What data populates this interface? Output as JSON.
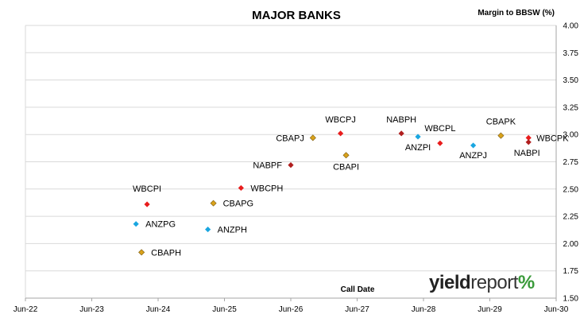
{
  "chart_data": {
    "type": "scatter",
    "title": "MAJOR BANKS",
    "xlabel": "Call Date",
    "ylabel": "Margin to BBSW (%)",
    "x_ticks": [
      "Jun-22",
      "Jun-23",
      "Jun-24",
      "Jun-25",
      "Jun-26",
      "Jun-27",
      "Jun-28",
      "Jun-29",
      "Jun-30"
    ],
    "y_ticks": [
      "1.50",
      "1.75",
      "2.00",
      "2.25",
      "2.50",
      "2.75",
      "3.00",
      "3.25",
      "3.50",
      "3.75",
      "4.00"
    ],
    "xlim": [
      "2022-06",
      "2030-06"
    ],
    "ylim": [
      1.5,
      4.0
    ],
    "grid": "horizontal",
    "colors": {
      "WBC": "#e81c1c",
      "CBA": "#d9a21b",
      "ANZ": "#1aa6e0",
      "NAB": "#b01e1e"
    },
    "points": [
      {
        "label": "WBCPI",
        "bank": "WBC",
        "x": "2024-04",
        "y": 2.36
      },
      {
        "label": "CBAPG",
        "bank": "CBA",
        "x": "2025-04",
        "y": 2.37
      },
      {
        "label": "WBCPH",
        "bank": "WBC",
        "x": "2025-09",
        "y": 2.51
      },
      {
        "label": "ANZPG",
        "bank": "ANZ",
        "x": "2024-02",
        "y": 2.18
      },
      {
        "label": "ANZPH",
        "bank": "ANZ",
        "x": "2025-03",
        "y": 2.13
      },
      {
        "label": "CBAPH",
        "bank": "CBA",
        "x": "2024-03",
        "y": 1.92
      },
      {
        "label": "NABPF",
        "bank": "NAB",
        "x": "2026-06",
        "y": 2.72
      },
      {
        "label": "CBAPJ",
        "bank": "CBA",
        "x": "2026-10",
        "y": 2.97
      },
      {
        "label": "WBCPJ",
        "bank": "WBC",
        "x": "2027-03",
        "y": 3.01
      },
      {
        "label": "CBAPI",
        "bank": "CBA",
        "x": "2027-04",
        "y": 2.81
      },
      {
        "label": "NABPH",
        "bank": "NAB",
        "x": "2028-02",
        "y": 3.01
      },
      {
        "label": "ANZPI",
        "bank": "ANZ",
        "x": "2028-05",
        "y": 2.98
      },
      {
        "label": "WBCPL",
        "bank": "WBC",
        "x": "2028-09",
        "y": 2.92
      },
      {
        "label": "ANZPJ",
        "bank": "ANZ",
        "x": "2029-03",
        "y": 2.9
      },
      {
        "label": "CBAPK",
        "bank": "CBA",
        "x": "2029-08",
        "y": 2.99
      },
      {
        "label": "WBCPK",
        "bank": "WBC",
        "x": "2030-01",
        "y": 2.97
      },
      {
        "label": "NABPI",
        "bank": "NAB",
        "x": "2030-01",
        "y": 2.93
      }
    ]
  },
  "logo": {
    "part1": "yield",
    "part2": "report",
    "symbol": "%"
  }
}
